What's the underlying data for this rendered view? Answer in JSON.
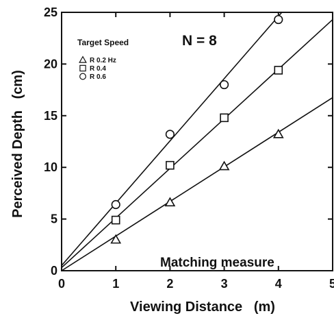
{
  "chart_data": {
    "type": "scatter",
    "xlabel": "Viewing Distance   (m)",
    "ylabel": "Perceived Depth   (cm)",
    "xlim": [
      0,
      5
    ],
    "ylim": [
      0,
      25
    ],
    "xticks": [
      "0",
      "1",
      "2",
      "3",
      "4",
      "5"
    ],
    "yticks": [
      "0",
      "5",
      "10",
      "15",
      "20",
      "25"
    ],
    "grid": false,
    "legend_title": "Target Speed",
    "legend_position": "top-left",
    "annotations": {
      "n_label": "N = 8",
      "measure_label": "Matching measure"
    },
    "series": [
      {
        "name": "R 0.2 Hz",
        "marker": "triangle",
        "x": [
          1,
          2,
          3,
          4
        ],
        "y": [
          3.0,
          6.6,
          10.1,
          13.2
        ],
        "fit": {
          "intercept": 0.0,
          "slope": 3.35
        }
      },
      {
        "name": "R 0.4",
        "marker": "square",
        "x": [
          1,
          2,
          3,
          4
        ],
        "y": [
          4.9,
          10.2,
          14.8,
          19.4
        ],
        "fit": {
          "intercept": 0.3,
          "slope": 4.8
        }
      },
      {
        "name": "R 0.6",
        "marker": "circle",
        "x": [
          1,
          2,
          3,
          4
        ],
        "y": [
          6.4,
          13.2,
          18.0,
          24.3
        ],
        "fit": {
          "intercept": 0.5,
          "slope": 6.03
        }
      }
    ]
  }
}
